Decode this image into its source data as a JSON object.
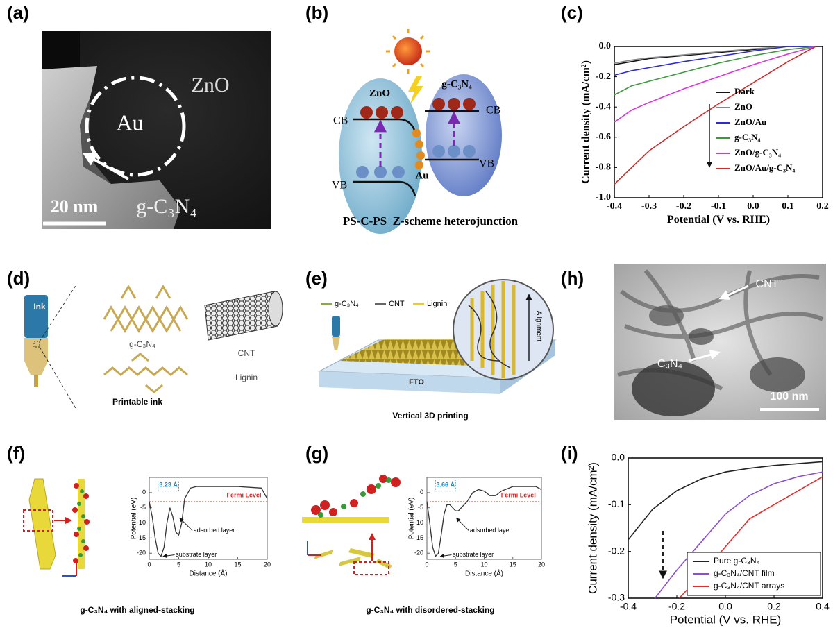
{
  "panel_a": {
    "label": "(a)",
    "zno": "ZnO",
    "au": "Au",
    "shell": "g-C₃N₄",
    "scale_bar": "20 nm"
  },
  "panel_b": {
    "label": "(b)",
    "left": "ZnO",
    "right": "g-C₃N₄",
    "cb_left": "CB",
    "cb_right": "CB",
    "vb_left": "VB",
    "vb_right": "VB",
    "metal": "Au",
    "caption": "PS-C-PS  Z-scheme heterojunction"
  },
  "panel_c": {
    "label": "(c)"
  },
  "panel_d": {
    "label": "(d)",
    "ink": "Ink",
    "sheet": "g-C₃N₄",
    "tube": "CNT",
    "polymer": "Lignin",
    "caption": "Printable ink"
  },
  "panel_e": {
    "label": "(e)",
    "legend": [
      "g-C₃N₄",
      "CNT",
      "Lignin"
    ],
    "substrate": "FTO",
    "arrow": "Alignment",
    "caption": "Vertical 3D printing"
  },
  "panel_h": {
    "label": "(h)",
    "tube": "CNT",
    "sheet": "C₃N₄",
    "scale_bar": "100 nm"
  },
  "panel_f": {
    "label": "(f)",
    "caption": "g-C₃N₄ with aligned-stacking"
  },
  "panel_g": {
    "label": "(g)",
    "caption": "g-C₃N₄ with disordered-stacking"
  },
  "panel_i": {
    "label": "(i)"
  },
  "chart_data": [
    {
      "type": "line",
      "xlabel": "Potential (V vs. RHE)",
      "ylabel": "Current density (mA/cm²)",
      "x": [
        -0.4,
        -0.35,
        -0.3,
        -0.2,
        -0.1,
        0,
        0.1,
        0.18
      ],
      "series": [
        {
          "name": "Dark",
          "color": "#111111",
          "values": [
            -0.12,
            -0.1,
            -0.08,
            -0.06,
            -0.04,
            -0.02,
            0,
            0
          ]
        },
        {
          "name": "ZnO",
          "color": "#888888",
          "values": [
            -0.11,
            -0.09,
            -0.075,
            -0.055,
            -0.035,
            -0.015,
            0,
            0
          ]
        },
        {
          "name": "ZnO/Au",
          "color": "#2a2ad8",
          "values": [
            -0.19,
            -0.16,
            -0.14,
            -0.1,
            -0.065,
            -0.03,
            0,
            0
          ]
        },
        {
          "name": "g-C₃N₄",
          "color": "#3a9a3a",
          "values": [
            -0.32,
            -0.26,
            -0.23,
            -0.17,
            -0.11,
            -0.06,
            -0.02,
            0
          ]
        },
        {
          "name": "ZnO/g-C₃N₄",
          "color": "#e030e0",
          "values": [
            -0.5,
            -0.42,
            -0.37,
            -0.28,
            -0.2,
            -0.12,
            -0.05,
            0
          ]
        },
        {
          "name": "ZnO/Au/g-C₃N₄",
          "color": "#d02a2a",
          "values": [
            -0.91,
            -0.8,
            -0.69,
            -0.53,
            -0.38,
            -0.24,
            -0.1,
            0
          ]
        }
      ],
      "xlim": [
        -0.4,
        0.2
      ],
      "xticks": [
        -0.4,
        -0.3,
        -0.2,
        -0.1,
        {
          "value": 0,
          "label": "0.0"
        },
        0.1,
        0.2
      ],
      "ylim": [
        -1,
        0
      ],
      "yticks": [
        {
          "value": -1,
          "label": "-1.0"
        },
        -0.8,
        -0.6,
        -0.4,
        -0.2,
        {
          "value": 0,
          "label": "0.0"
        }
      ]
    },
    {
      "type": "line",
      "xlabel": "Distance (Å)",
      "ylabel": "Potential (eV)",
      "series": [
        {
          "color": "#333333",
          "x": [
            0,
            0.5,
            1,
            1.5,
            2,
            2.5,
            3,
            3.5,
            4,
            4.5,
            5,
            5.5,
            6,
            7,
            8,
            10,
            15,
            19,
            20
          ],
          "values": [
            -3,
            -8,
            -15,
            -20,
            -21,
            -18,
            -10,
            -5,
            -8,
            -13,
            -14,
            -10,
            -2,
            1.5,
            2,
            2,
            2,
            1.5,
            -2
          ]
        }
      ],
      "fermi_level": -3,
      "annotations": {
        "gap": "3.23 Å",
        "fermi": "Fermi Level",
        "upper": "adsorbed layer",
        "lower": "substrate layer"
      },
      "xlim": [
        0,
        20
      ],
      "xticks": [
        0,
        5,
        10,
        15,
        20
      ],
      "ylim": [
        -22,
        5
      ],
      "yticks": [
        -20,
        -15,
        -10,
        -5,
        0
      ]
    },
    {
      "type": "line",
      "xlabel": "Distance (Å)",
      "ylabel": "Potential (eV)",
      "series": [
        {
          "color": "#333333",
          "x": [
            0,
            0.5,
            1,
            1.5,
            2,
            2.5,
            3,
            3.5,
            4,
            5,
            5.5,
            6,
            7,
            8,
            9,
            10,
            11,
            12,
            13,
            15,
            17,
            19,
            20
          ],
          "values": [
            -3,
            -10,
            -18,
            -21,
            -20,
            -14,
            -7,
            -4,
            -4,
            -6,
            -6,
            -5,
            -3,
            0,
            1,
            0.5,
            -1,
            -1,
            0.5,
            2,
            2,
            2,
            1
          ]
        }
      ],
      "fermi_level": -3,
      "annotations": {
        "gap": "3.66 Å",
        "fermi": "Fermi Level",
        "upper": "adsorbed layer",
        "lower": "substrate layer"
      },
      "xlim": [
        0,
        20
      ],
      "xticks": [
        0,
        5,
        10,
        15,
        20
      ],
      "ylim": [
        -22,
        5
      ],
      "yticks": [
        -20,
        -15,
        -10,
        -5,
        0
      ]
    },
    {
      "type": "line",
      "xlabel": "Potential (V vs. RHE)",
      "ylabel": "Current density (mA/cm²)",
      "series": [
        {
          "name": "Pure g-C₃N₄",
          "color": "#222222",
          "x": [
            -0.4,
            -0.3,
            -0.2,
            -0.1,
            0,
            0.1,
            0.2,
            0.3,
            0.4
          ],
          "values": [
            -0.175,
            -0.11,
            -0.07,
            -0.045,
            -0.03,
            -0.022,
            -0.016,
            -0.012,
            -0.008
          ]
        },
        {
          "name": "g-C₃N₄/CNT film",
          "color": "#8a4fd8",
          "x": [
            -0.29,
            -0.2,
            -0.1,
            0,
            0.1,
            0.2,
            0.3,
            0.4
          ],
          "values": [
            -0.3,
            -0.24,
            -0.18,
            -0.12,
            -0.08,
            -0.055,
            -0.04,
            -0.03
          ]
        },
        {
          "name": "g-C₃N₄/CNT arrays",
          "color": "#e82a2a",
          "x": [
            -0.19,
            -0.1,
            0,
            0.1,
            0.2,
            0.3,
            0.4
          ],
          "values": [
            -0.3,
            -0.25,
            -0.19,
            -0.13,
            -0.1,
            -0.07,
            -0.04
          ]
        }
      ],
      "xlim": [
        -0.4,
        0.4
      ],
      "xticks": [
        -0.4,
        -0.2,
        {
          "value": 0,
          "label": "0.0"
        },
        0.2,
        0.4
      ],
      "ylim": [
        -0.3,
        0
      ],
      "yticks": [
        -0.3,
        -0.2,
        -0.1,
        {
          "value": 0,
          "label": "0.0"
        }
      ]
    }
  ]
}
